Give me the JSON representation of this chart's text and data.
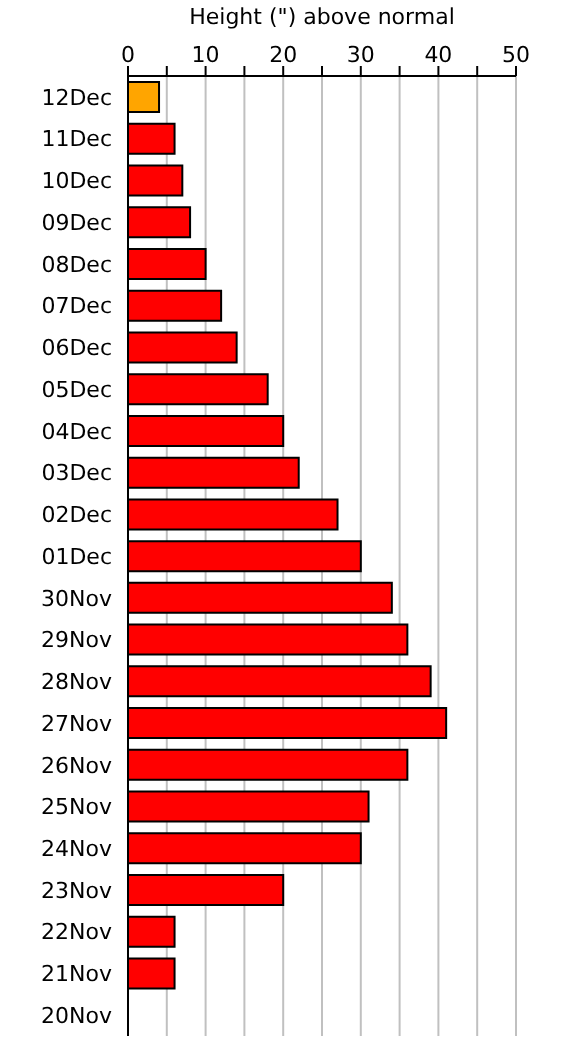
{
  "chart_data": {
    "type": "bar",
    "orientation": "horizontal",
    "xlabel": "Height (\") above normal",
    "categories": [
      "12Dec",
      "11Dec",
      "10Dec",
      "09Dec",
      "08Dec",
      "07Dec",
      "06Dec",
      "05Dec",
      "04Dec",
      "03Dec",
      "02Dec",
      "01Dec",
      "30Nov",
      "29Nov",
      "28Nov",
      "27Nov",
      "26Nov",
      "25Nov",
      "24Nov",
      "23Nov",
      "22Nov",
      "21Nov",
      "20Nov"
    ],
    "values": [
      4,
      6,
      7,
      8,
      10,
      12,
      14,
      18,
      20,
      22,
      27,
      30,
      34,
      36,
      39,
      41,
      36,
      31,
      30,
      20,
      6,
      6,
      0
    ],
    "colors": [
      "#ffa500",
      "#ff0000",
      "#ff0000",
      "#ff0000",
      "#ff0000",
      "#ff0000",
      "#ff0000",
      "#ff0000",
      "#ff0000",
      "#ff0000",
      "#ff0000",
      "#ff0000",
      "#ff0000",
      "#ff0000",
      "#ff0000",
      "#ff0000",
      "#ff0000",
      "#ff0000",
      "#ff0000",
      "#ff0000",
      "#ff0000",
      "#ff0000",
      "#ff0000"
    ],
    "xlim": [
      0,
      50
    ],
    "xticks": [
      0,
      {
        "value": 5,
        "label": null
      },
      10,
      {
        "value": 15,
        "label": null
      },
      20,
      {
        "value": 25,
        "label": null
      },
      30,
      {
        "value": 35,
        "label": null
      },
      40,
      {
        "value": 45,
        "label": null
      },
      50
    ],
    "grid": "x"
  }
}
